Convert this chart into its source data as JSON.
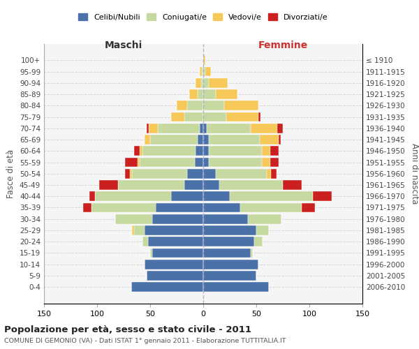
{
  "age_groups": [
    "0-4",
    "5-9",
    "10-14",
    "15-19",
    "20-24",
    "25-29",
    "30-34",
    "35-39",
    "40-44",
    "45-49",
    "50-54",
    "55-59",
    "60-64",
    "65-69",
    "70-74",
    "75-79",
    "80-84",
    "85-89",
    "90-94",
    "95-99",
    "100+"
  ],
  "birth_years": [
    "2006-2010",
    "2001-2005",
    "1996-2000",
    "1991-1995",
    "1986-1990",
    "1981-1985",
    "1976-1980",
    "1971-1975",
    "1966-1970",
    "1961-1965",
    "1956-1960",
    "1951-1955",
    "1946-1950",
    "1941-1945",
    "1936-1940",
    "1931-1935",
    "1926-1930",
    "1921-1925",
    "1916-1920",
    "1911-1915",
    "≤ 1910"
  ],
  "male": {
    "celibi": [
      68,
      53,
      55,
      48,
      52,
      55,
      48,
      45,
      30,
      18,
      15,
      8,
      7,
      5,
      3,
      0,
      0,
      0,
      0,
      0,
      0
    ],
    "coniugati": [
      0,
      0,
      0,
      2,
      5,
      10,
      35,
      60,
      72,
      62,
      52,
      52,
      50,
      45,
      40,
      18,
      15,
      5,
      2,
      1,
      0
    ],
    "vedovi": [
      0,
      0,
      0,
      0,
      0,
      2,
      0,
      0,
      0,
      0,
      2,
      2,
      3,
      5,
      8,
      12,
      10,
      8,
      5,
      2,
      0
    ],
    "divorziati": [
      0,
      0,
      0,
      0,
      0,
      0,
      0,
      8,
      5,
      18,
      5,
      12,
      5,
      0,
      2,
      0,
      0,
      0,
      0,
      0,
      0
    ]
  },
  "female": {
    "nubili": [
      62,
      50,
      52,
      45,
      48,
      50,
      42,
      35,
      25,
      15,
      12,
      5,
      5,
      5,
      3,
      0,
      0,
      0,
      0,
      0,
      0
    ],
    "coniugate": [
      0,
      0,
      0,
      2,
      8,
      12,
      32,
      58,
      78,
      60,
      48,
      50,
      50,
      48,
      42,
      22,
      20,
      12,
      5,
      2,
      0
    ],
    "vedove": [
      0,
      0,
      0,
      0,
      0,
      0,
      0,
      0,
      0,
      0,
      4,
      8,
      8,
      18,
      25,
      30,
      32,
      20,
      18,
      5,
      2
    ],
    "divorziate": [
      0,
      0,
      0,
      0,
      0,
      0,
      0,
      12,
      18,
      18,
      5,
      8,
      8,
      2,
      5,
      2,
      0,
      0,
      0,
      0,
      0
    ]
  },
  "colors": {
    "celibi": "#4a72a8",
    "coniugati": "#c5d9a0",
    "vedovi": "#f5c858",
    "divorziati": "#cc2020"
  },
  "title": "Popolazione per età, sesso e stato civile - 2011",
  "subtitle": "COMUNE DI GEMONIO (VA) - Dati ISTAT 1° gennaio 2011 - Elaborazione TUTTITALIA.IT",
  "xlabel_left": "Maschi",
  "xlabel_right": "Femmine",
  "ylabel_left": "Fasce di età",
  "ylabel_right": "Anni di nascita",
  "xlim": 150,
  "bg_color": "#f5f5f5",
  "grid_color": "#cccccc"
}
